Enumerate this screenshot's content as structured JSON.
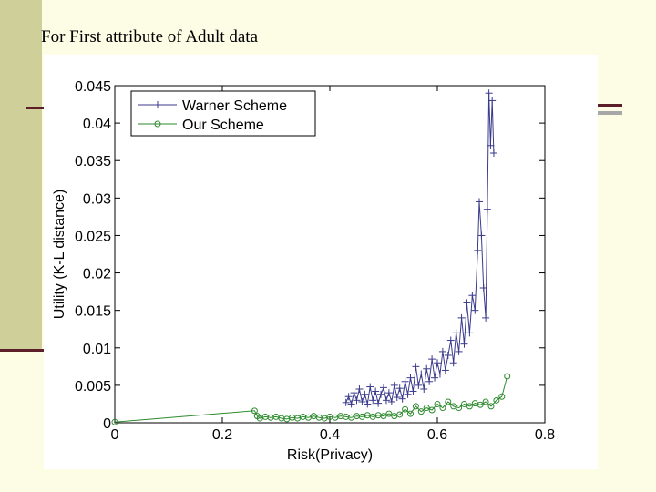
{
  "slide": {
    "title": "For First attribute of Adult data"
  },
  "chart_data": {
    "type": "line",
    "xlabel": "Risk(Privacy)",
    "ylabel": "Utility (K-L distance)",
    "xlim": [
      0,
      0.8
    ],
    "ylim": [
      0,
      0.045
    ],
    "x_ticks": [
      "0",
      "0.2",
      "0.4",
      "0.6",
      "0.8"
    ],
    "y_ticks": [
      "0",
      "0.005",
      "0.01",
      "0.015",
      "0.02",
      "0.025",
      "0.03",
      "0.035",
      "0.04",
      "0.045"
    ],
    "grid": false,
    "legend_position": "top-left",
    "series": [
      {
        "name": "Warner Scheme",
        "color": "#3a3a8c",
        "marker": "plus",
        "points": [
          [
            0.43,
            0.0027
          ],
          [
            0.435,
            0.0035
          ],
          [
            0.44,
            0.0025
          ],
          [
            0.445,
            0.004
          ],
          [
            0.45,
            0.003
          ],
          [
            0.455,
            0.0045
          ],
          [
            0.46,
            0.0028
          ],
          [
            0.465,
            0.0038
          ],
          [
            0.47,
            0.0025
          ],
          [
            0.475,
            0.0048
          ],
          [
            0.48,
            0.003
          ],
          [
            0.485,
            0.0042
          ],
          [
            0.49,
            0.0026
          ],
          [
            0.495,
            0.0038
          ],
          [
            0.5,
            0.0047
          ],
          [
            0.505,
            0.003
          ],
          [
            0.51,
            0.004
          ],
          [
            0.515,
            0.0028
          ],
          [
            0.52,
            0.005
          ],
          [
            0.525,
            0.0034
          ],
          [
            0.53,
            0.0046
          ],
          [
            0.535,
            0.0032
          ],
          [
            0.54,
            0.0055
          ],
          [
            0.545,
            0.0038
          ],
          [
            0.55,
            0.006
          ],
          [
            0.555,
            0.0042
          ],
          [
            0.56,
            0.0075
          ],
          [
            0.565,
            0.005
          ],
          [
            0.57,
            0.0065
          ],
          [
            0.575,
            0.0045
          ],
          [
            0.58,
            0.0072
          ],
          [
            0.585,
            0.0055
          ],
          [
            0.59,
            0.0085
          ],
          [
            0.595,
            0.006
          ],
          [
            0.6,
            0.008
          ],
          [
            0.605,
            0.0065
          ],
          [
            0.61,
            0.0095
          ],
          [
            0.615,
            0.007
          ],
          [
            0.62,
            0.009
          ],
          [
            0.625,
            0.011
          ],
          [
            0.63,
            0.008
          ],
          [
            0.635,
            0.012
          ],
          [
            0.64,
            0.0095
          ],
          [
            0.645,
            0.014
          ],
          [
            0.65,
            0.0105
          ],
          [
            0.655,
            0.016
          ],
          [
            0.66,
            0.012
          ],
          [
            0.665,
            0.017
          ],
          [
            0.67,
            0.015
          ],
          [
            0.675,
            0.023
          ],
          [
            0.678,
            0.0295
          ],
          [
            0.682,
            0.025
          ],
          [
            0.686,
            0.018
          ],
          [
            0.69,
            0.014
          ],
          [
            0.693,
            0.0285
          ],
          [
            0.696,
            0.044
          ],
          [
            0.699,
            0.037
          ],
          [
            0.702,
            0.043
          ],
          [
            0.705,
            0.036
          ]
        ]
      },
      {
        "name": "Our Scheme",
        "color": "#2d8a2d",
        "marker": "circle",
        "points": [
          [
            0.0,
            0.0001
          ],
          [
            0.26,
            0.0016
          ],
          [
            0.265,
            0.0009
          ],
          [
            0.27,
            0.0006
          ],
          [
            0.28,
            0.0008
          ],
          [
            0.29,
            0.0007
          ],
          [
            0.3,
            0.0008
          ],
          [
            0.31,
            0.0006
          ],
          [
            0.32,
            0.0005
          ],
          [
            0.33,
            0.0007
          ],
          [
            0.34,
            0.0006
          ],
          [
            0.35,
            0.0008
          ],
          [
            0.36,
            0.0007
          ],
          [
            0.37,
            0.0009
          ],
          [
            0.38,
            0.0007
          ],
          [
            0.39,
            0.0006
          ],
          [
            0.4,
            0.0008
          ],
          [
            0.41,
            0.0007
          ],
          [
            0.42,
            0.0009
          ],
          [
            0.43,
            0.0008
          ],
          [
            0.44,
            0.0007
          ],
          [
            0.45,
            0.0009
          ],
          [
            0.46,
            0.0008
          ],
          [
            0.47,
            0.001
          ],
          [
            0.48,
            0.0008
          ],
          [
            0.49,
            0.001
          ],
          [
            0.5,
            0.0009
          ],
          [
            0.51,
            0.0012
          ],
          [
            0.52,
            0.0009
          ],
          [
            0.53,
            0.0011
          ],
          [
            0.54,
            0.0018
          ],
          [
            0.55,
            0.0012
          ],
          [
            0.56,
            0.0022
          ],
          [
            0.57,
            0.0015
          ],
          [
            0.58,
            0.002
          ],
          [
            0.59,
            0.0017
          ],
          [
            0.6,
            0.0025
          ],
          [
            0.61,
            0.002
          ],
          [
            0.62,
            0.0028
          ],
          [
            0.63,
            0.0022
          ],
          [
            0.64,
            0.002
          ],
          [
            0.65,
            0.0025
          ],
          [
            0.66,
            0.0022
          ],
          [
            0.67,
            0.0026
          ],
          [
            0.68,
            0.0024
          ],
          [
            0.69,
            0.0028
          ],
          [
            0.7,
            0.0022
          ],
          [
            0.71,
            0.003
          ],
          [
            0.72,
            0.0035
          ],
          [
            0.73,
            0.0062
          ]
        ]
      }
    ]
  }
}
